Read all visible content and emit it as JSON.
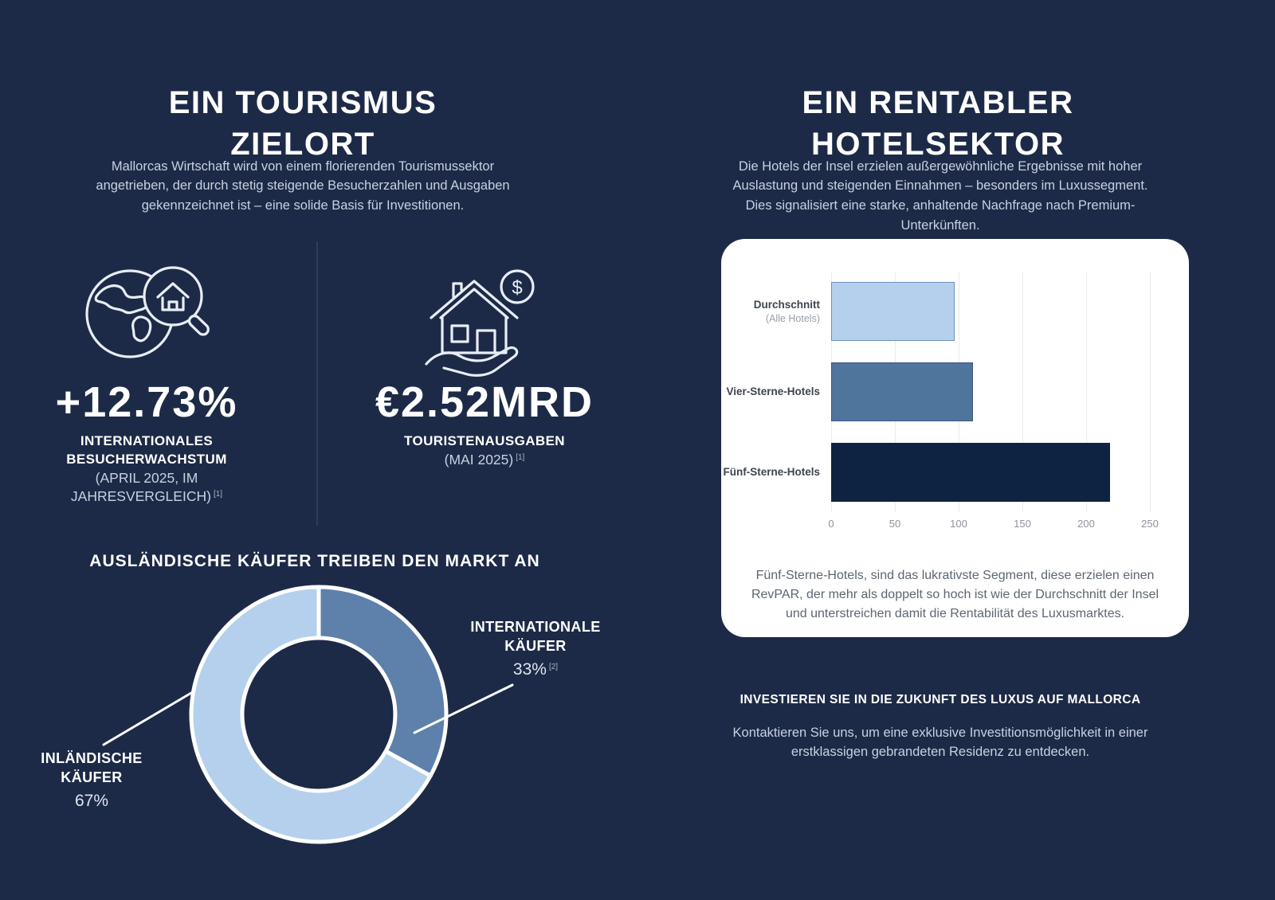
{
  "colors": {
    "background": "#1d2a47",
    "card": "#ffffff",
    "light_blue": "#b4d0ec",
    "mid_blue": "#4f759d",
    "donut_dark_blue": "#5d81ab",
    "dark_navy": "#0e2342",
    "muted_text": "#c7d1e0"
  },
  "left": {
    "title": "EIN TOURISMUS\nZIELORT",
    "intro": "Mallorcas Wirtschaft wird von einem florierenden Tourismussektor angetrieben, der durch stetig steigende Besucherzahlen und Ausgaben gekennzeichnet ist – eine solide Basis für Investitionen.",
    "stats": [
      {
        "icon": "globe-house-magnifier-icon",
        "value": "+12.73%",
        "label": "INTERNATIONALES BESUCHERWACHSTUM",
        "note": "(APRIL 2025, IM JAHRESVERGLEICH)",
        "footnote": "[1]"
      },
      {
        "icon": "house-hand-coin-icon",
        "value": "€2.52MRD",
        "label": "TOURISTENAUSGABEN",
        "note": "(MAI 2025)",
        "footnote": "[1]"
      }
    ],
    "market_heading": "AUSLÄNDISCHE KÄUFER TREIBEN DEN MARKT AN"
  },
  "right": {
    "title": "EIN RENTABLER\nHOTELSEKTOR",
    "intro": "Die Hotels der Insel erzielen außergewöhnliche Ergebnisse mit hoher Auslastung und steigenden Einnahmen – besonders im Luxussegment. Dies signalisiert eine starke, anhaltende Nachfrage nach Premium-Unterkünften.",
    "chart_caption": "Fünf-Sterne-Hotels, sind das lukrativste Segment, diese erzielen einen RevPAR, der mehr als doppelt so hoch ist wie der Durchschnitt der Insel und unterstreichen damit die Rentabilität des Luxusmarktes.",
    "cta_heading": "INVESTIEREN SIE IN DIE ZUKUNFT DES LUXUS AUF MALLORCA",
    "cta_text": "Kontaktieren Sie uns, um eine exklusive Investitionsmöglichkeit in einer erstklassigen gebrandeten Residenz zu entdecken."
  },
  "chart_data": [
    {
      "type": "pie",
      "style": "donut",
      "title": "AUSLÄNDISCHE KÄUFER TREIBEN DEN MARKT AN",
      "start_angle_deg": -90,
      "direction": "clockwise",
      "slices": [
        {
          "label": "INTERNATIONALE KÄUFER",
          "value": 33,
          "display": "33%",
          "footnote": "[2]",
          "color": "#5d81ab"
        },
        {
          "label": "INLÄNDISCHE KÄUFER",
          "value": 67,
          "display": "67%",
          "color": "#b4d0ec"
        }
      ]
    },
    {
      "type": "bar",
      "orientation": "horizontal",
      "title": "",
      "xlabel": "",
      "ylabel": "",
      "categories": [
        {
          "label": "Durchschnitt",
          "sublabel": "(Alle Hotels)"
        },
        {
          "label": "Vier-Sterne-Hotels",
          "sublabel": ""
        },
        {
          "label": "Fünf-Sterne-Hotels",
          "sublabel": ""
        }
      ],
      "values": [
        97,
        111,
        219
      ],
      "colors": [
        "#b4d0ec",
        "#4f759d",
        "#0e2342"
      ],
      "edge_colors": [
        "#6d94bd",
        "#3a5a7e",
        "#0e2342"
      ],
      "xlim": [
        0,
        250
      ],
      "xticks": [
        0,
        50,
        100,
        150,
        200,
        250
      ],
      "grid": true
    }
  ]
}
